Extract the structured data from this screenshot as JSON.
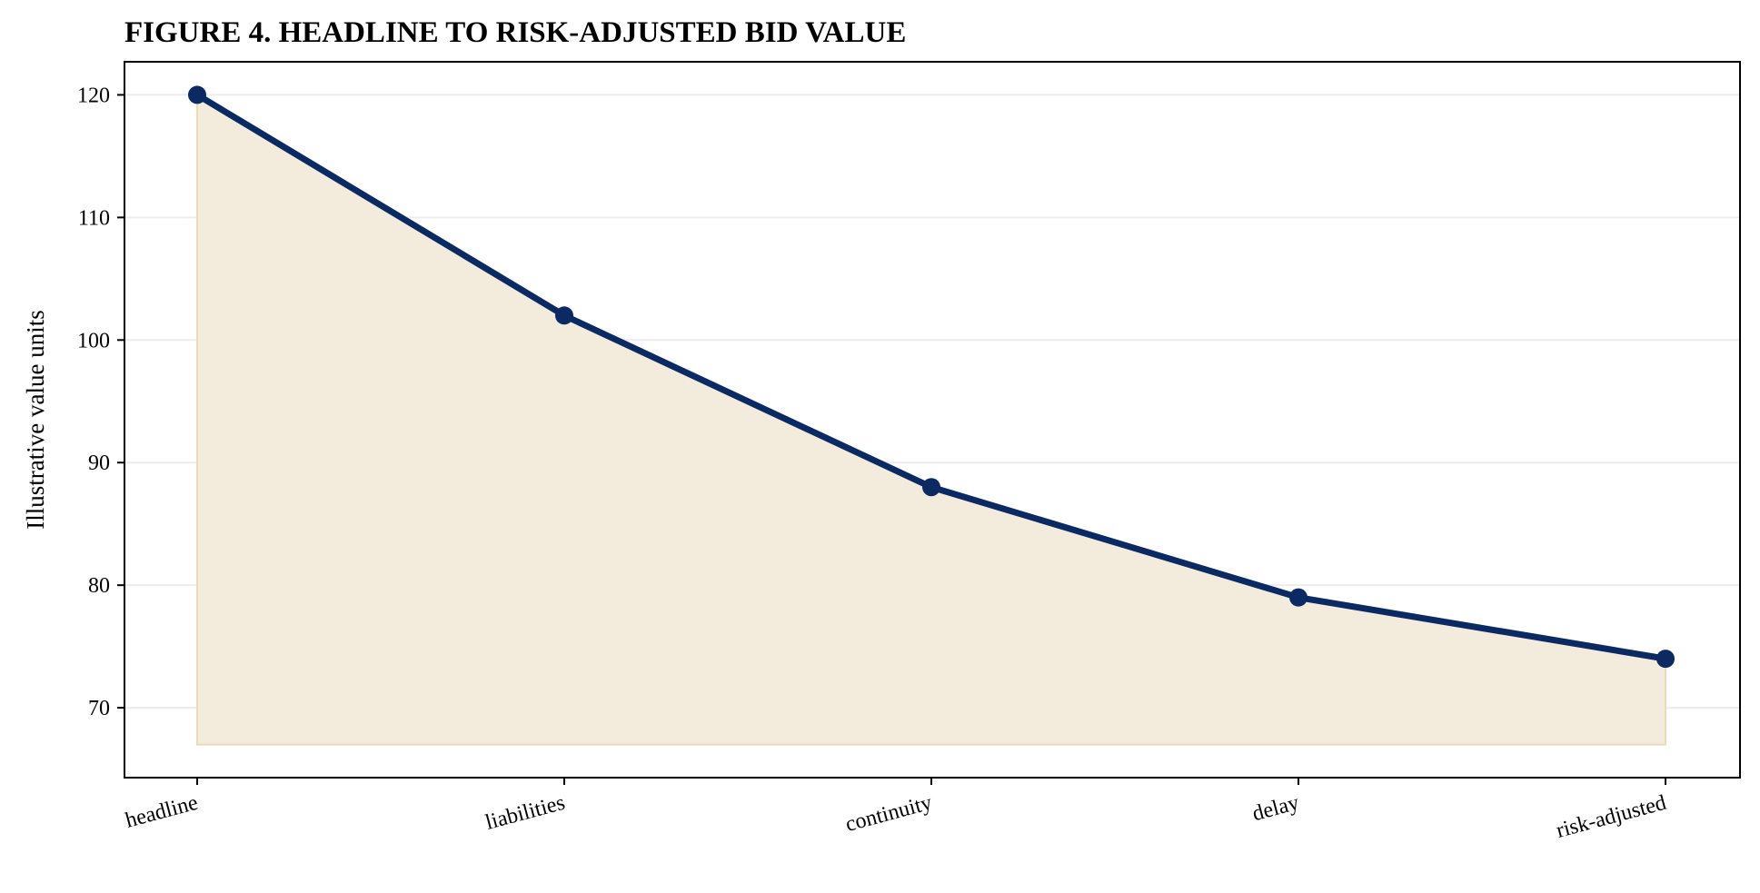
{
  "chart_data": {
    "type": "area",
    "title": "FIGURE 4. HEADLINE TO RISK-ADJUSTED BID VALUE",
    "xlabel": "",
    "ylabel": "Illustrative value units",
    "categories": [
      "headline",
      "liabilities",
      "continuity",
      "delay",
      "risk-adjusted"
    ],
    "series": [
      {
        "values": [
          120,
          102,
          88,
          79,
          74
        ]
      }
    ],
    "fill_baseline": 67,
    "ylim": [
      64.3,
      122.7
    ],
    "yticks": [
      70,
      80,
      90,
      100,
      110,
      120
    ],
    "grid": "horizontal",
    "legend": "none",
    "colors": {
      "line": "#0b2a63",
      "marker": "#0b2a63",
      "fill": "#f3ecdc",
      "fill_edge": "#eadcb9",
      "grid": "#ececec",
      "axis": "#000000"
    }
  }
}
